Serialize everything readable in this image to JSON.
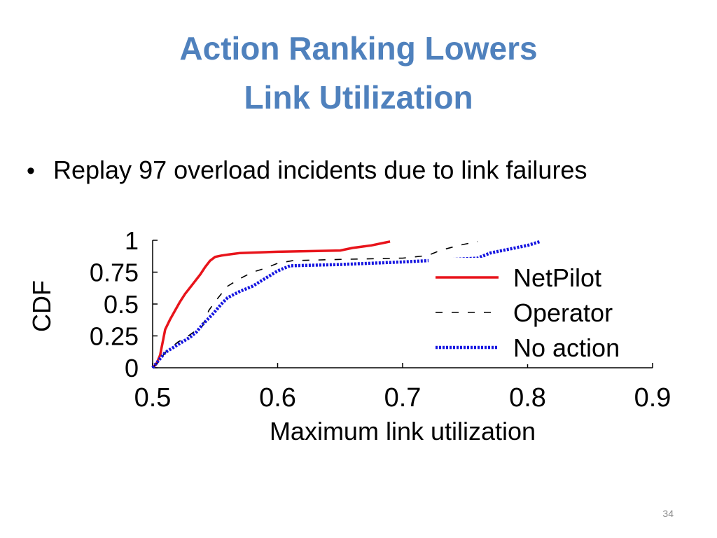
{
  "slide": {
    "title_line1": "Action Ranking Lowers",
    "title_line2": "Link Utilization",
    "bullet_symbol": "•",
    "bullet_text": "Replay 97 overload incidents due to link failures",
    "page_number": "34",
    "title_color": "#4f81bd"
  },
  "chart_data": {
    "type": "line",
    "xlabel": "Maximum link utilization",
    "ylabel": "CDF",
    "xlim": [
      0.5,
      0.9
    ],
    "ylim": [
      0,
      1
    ],
    "x_ticks": [
      "0.5",
      "0.6",
      "0.7",
      "0.8",
      "0.9"
    ],
    "y_ticks": [
      "0",
      "0.25",
      "0.5",
      "0.75",
      "1"
    ],
    "legend_position": "right",
    "series": [
      {
        "name": "NetPilot",
        "color": "#e8141b",
        "style": "solid",
        "points": [
          [
            0.5,
            0.0
          ],
          [
            0.503,
            0.03
          ],
          [
            0.506,
            0.1
          ],
          [
            0.508,
            0.2
          ],
          [
            0.51,
            0.3
          ],
          [
            0.514,
            0.38
          ],
          [
            0.518,
            0.45
          ],
          [
            0.522,
            0.52
          ],
          [
            0.526,
            0.58
          ],
          [
            0.53,
            0.63
          ],
          [
            0.534,
            0.68
          ],
          [
            0.538,
            0.73
          ],
          [
            0.542,
            0.79
          ],
          [
            0.546,
            0.84
          ],
          [
            0.55,
            0.87
          ],
          [
            0.555,
            0.88
          ],
          [
            0.562,
            0.89
          ],
          [
            0.57,
            0.9
          ],
          [
            0.6,
            0.91
          ],
          [
            0.65,
            0.92
          ],
          [
            0.66,
            0.94
          ],
          [
            0.675,
            0.96
          ],
          [
            0.685,
            0.98
          ],
          [
            0.69,
            0.99
          ]
        ]
      },
      {
        "name": "Operator",
        "color": "#000000",
        "style": "dashed",
        "points": [
          [
            0.5,
            0.0
          ],
          [
            0.505,
            0.05
          ],
          [
            0.51,
            0.12
          ],
          [
            0.52,
            0.2
          ],
          [
            0.53,
            0.26
          ],
          [
            0.54,
            0.33
          ],
          [
            0.545,
            0.45
          ],
          [
            0.55,
            0.52
          ],
          [
            0.555,
            0.58
          ],
          [
            0.56,
            0.64
          ],
          [
            0.57,
            0.7
          ],
          [
            0.58,
            0.75
          ],
          [
            0.59,
            0.78
          ],
          [
            0.6,
            0.82
          ],
          [
            0.612,
            0.84
          ],
          [
            0.65,
            0.85
          ],
          [
            0.7,
            0.86
          ],
          [
            0.72,
            0.88
          ],
          [
            0.73,
            0.92
          ],
          [
            0.745,
            0.96
          ],
          [
            0.76,
            0.99
          ]
        ]
      },
      {
        "name": "No action",
        "color": "#1515e0",
        "style": "dotted",
        "points": [
          [
            0.5,
            0.0
          ],
          [
            0.505,
            0.06
          ],
          [
            0.51,
            0.12
          ],
          [
            0.52,
            0.18
          ],
          [
            0.53,
            0.24
          ],
          [
            0.535,
            0.28
          ],
          [
            0.54,
            0.34
          ],
          [
            0.548,
            0.42
          ],
          [
            0.555,
            0.5
          ],
          [
            0.56,
            0.55
          ],
          [
            0.57,
            0.6
          ],
          [
            0.58,
            0.64
          ],
          [
            0.59,
            0.7
          ],
          [
            0.6,
            0.76
          ],
          [
            0.61,
            0.8
          ],
          [
            0.65,
            0.81
          ],
          [
            0.7,
            0.83
          ],
          [
            0.76,
            0.86
          ],
          [
            0.77,
            0.9
          ],
          [
            0.79,
            0.94
          ],
          [
            0.8,
            0.96
          ],
          [
            0.81,
            0.99
          ]
        ]
      }
    ]
  }
}
